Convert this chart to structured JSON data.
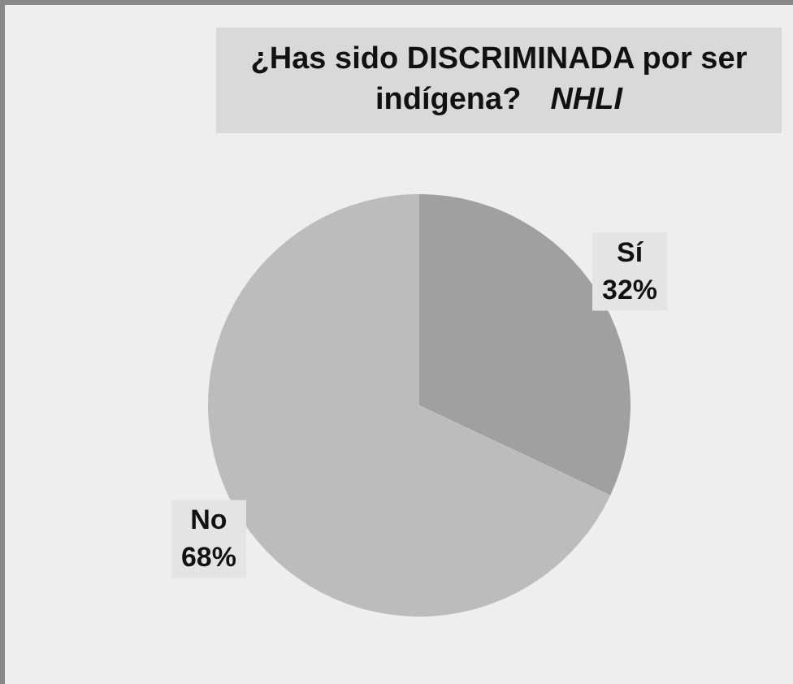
{
  "chart_data": {
    "type": "pie",
    "title": "¿Has sido DISCRIMINADA por ser indígena?",
    "annotations": [
      "NHLI"
    ],
    "categories": [
      "Sí",
      "No"
    ],
    "values": [
      32,
      68
    ],
    "colors": [
      "#a0a0a0",
      "#bcbcbc"
    ],
    "value_labels": [
      "32%",
      "68%"
    ],
    "legend": false
  }
}
